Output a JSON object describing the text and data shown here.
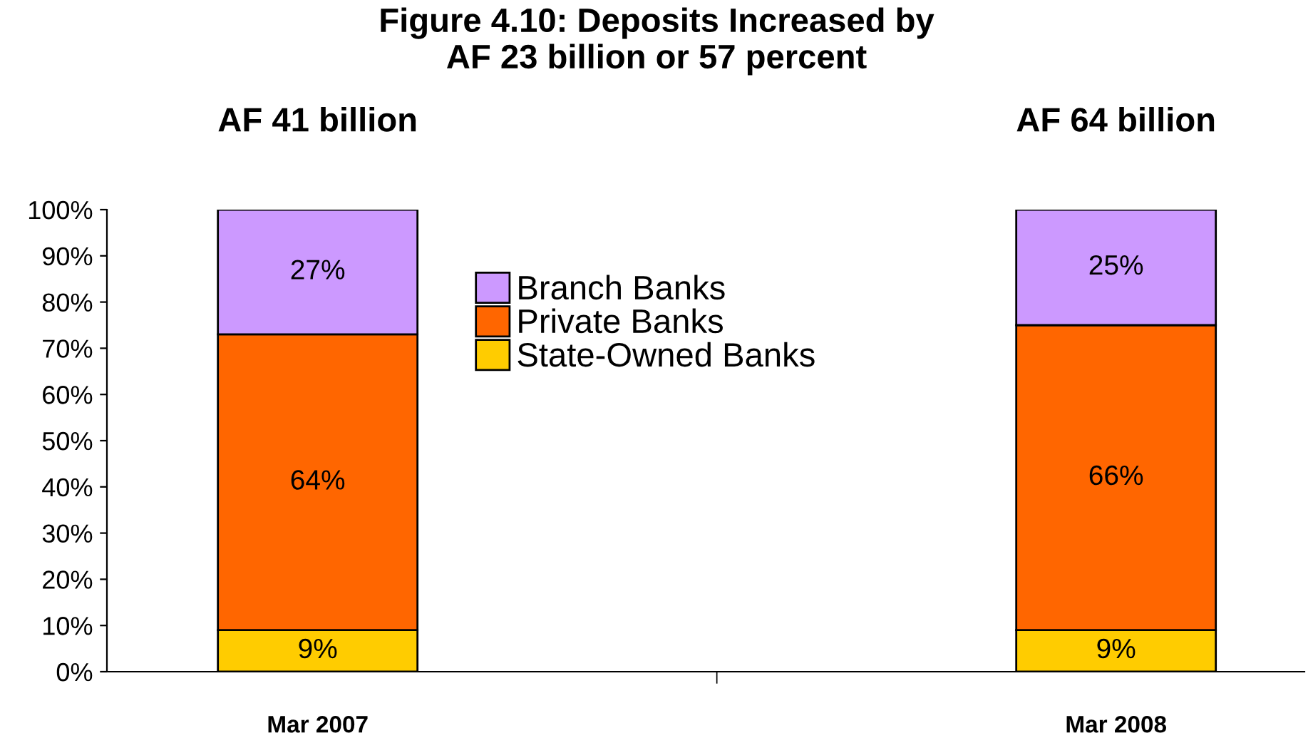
{
  "chart_data": {
    "type": "bar",
    "stacked": true,
    "title": "Figure 4.10: Deposits Increased by\nAF 23 billion or 57 percent",
    "categories": [
      "Mar 2007",
      "Mar 2008"
    ],
    "series": [
      {
        "name": "State-Owned Banks",
        "color": "#ffcc00",
        "values": [
          9,
          9
        ],
        "value_labels": [
          "9%",
          "9%"
        ]
      },
      {
        "name": "Private Banks",
        "color": "#ff6600",
        "values": [
          64,
          66
        ],
        "value_labels": [
          "64%",
          "66%"
        ]
      },
      {
        "name": "Branch Banks",
        "color": "#cc99ff",
        "values": [
          27,
          25
        ],
        "value_labels": [
          "27%",
          "25%"
        ]
      }
    ],
    "totals": [
      "AF 41 billion",
      "AF 64 billion"
    ],
    "ylim": [
      0,
      100
    ],
    "yticks": [
      {
        "value": 0,
        "label": "0%"
      },
      {
        "value": 10,
        "label": "10%"
      },
      {
        "value": 20,
        "label": "20%"
      },
      {
        "value": 30,
        "label": "30%"
      },
      {
        "value": 40,
        "label": "40%"
      },
      {
        "value": 50,
        "label": "50%"
      },
      {
        "value": 60,
        "label": "60%"
      },
      {
        "value": 70,
        "label": "70%"
      },
      {
        "value": 80,
        "label": "80%"
      },
      {
        "value": 90,
        "label": "90%"
      },
      {
        "value": 100,
        "label": "100%"
      }
    ],
    "legend": "top",
    "grid": false
  }
}
